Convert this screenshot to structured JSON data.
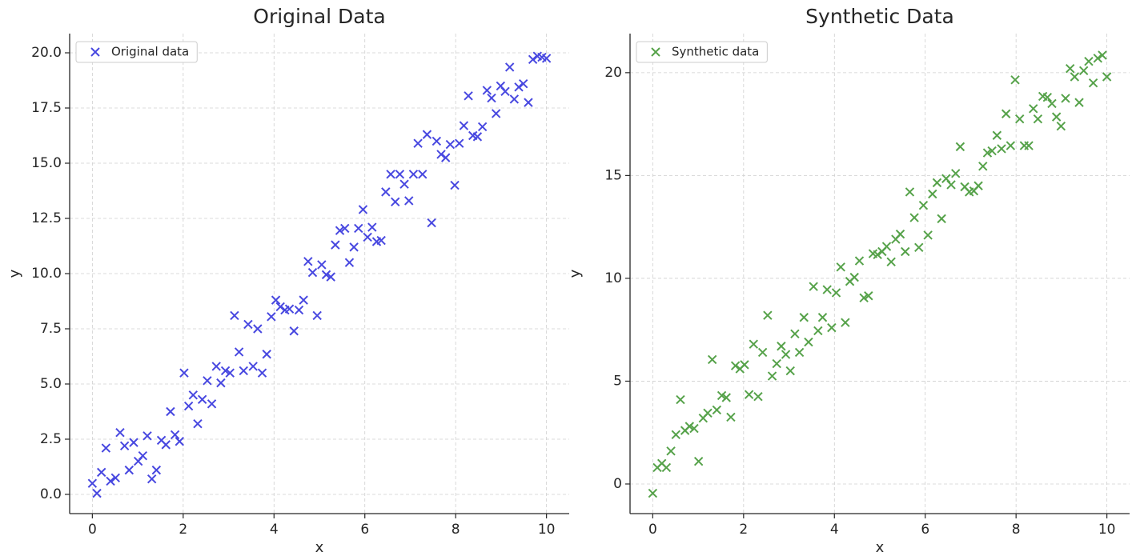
{
  "chart_data": [
    {
      "type": "scatter",
      "title": "Original Data",
      "xlabel": "x",
      "ylabel": "y",
      "grid": true,
      "legend": "upper left",
      "xlim": [
        -0.5,
        10.5
      ],
      "ylim": [
        -0.87,
        20.87
      ],
      "xticks": [
        0,
        2,
        4,
        6,
        8,
        10
      ],
      "yticks": [
        {
          "value": 0,
          "label": "0.0"
        },
        2.5,
        {
          "value": 5,
          "label": "5.0"
        },
        7.5,
        {
          "value": 10,
          "label": "10.0"
        },
        12.5,
        {
          "value": 15,
          "label": "15.0"
        },
        17.5,
        {
          "value": 20,
          "label": "20.0"
        }
      ],
      "x": [
        0,
        0.1,
        0.2,
        0.3,
        0.4,
        0.51,
        0.61,
        0.71,
        0.81,
        0.91,
        1.01,
        1.11,
        1.21,
        1.31,
        1.41,
        1.52,
        1.62,
        1.72,
        1.82,
        1.92,
        2.02,
        2.12,
        2.22,
        2.32,
        2.42,
        2.53,
        2.63,
        2.73,
        2.83,
        2.93,
        3.03,
        3.13,
        3.23,
        3.33,
        3.43,
        3.54,
        3.64,
        3.74,
        3.84,
        3.94,
        4.04,
        4.14,
        4.24,
        4.34,
        4.44,
        4.55,
        4.65,
        4.75,
        4.85,
        4.95,
        5.05,
        5.15,
        5.25,
        5.35,
        5.45,
        5.56,
        5.66,
        5.76,
        5.86,
        5.96,
        6.06,
        6.16,
        6.26,
        6.36,
        6.46,
        6.57,
        6.67,
        6.77,
        6.87,
        6.97,
        7.07,
        7.17,
        7.27,
        7.37,
        7.47,
        7.58,
        7.68,
        7.78,
        7.88,
        7.98,
        8.08,
        8.18,
        8.28,
        8.38,
        8.48,
        8.59,
        8.69,
        8.79,
        8.89,
        8.99,
        9.09,
        9.19,
        9.29,
        9.39,
        9.49,
        9.6,
        9.7,
        9.8,
        9.9,
        10
      ],
      "series": [
        {
          "name": "Original data",
          "color": "#4848e0",
          "values": [
            0.5,
            0.05,
            1.0,
            2.1,
            0.6,
            0.75,
            2.8,
            2.2,
            1.1,
            2.35,
            1.5,
            1.75,
            2.65,
            0.7,
            1.1,
            2.45,
            2.25,
            3.75,
            2.7,
            2.4,
            5.5,
            4.0,
            4.5,
            3.2,
            4.3,
            5.15,
            4.1,
            5.8,
            5.05,
            5.6,
            5.5,
            8.1,
            6.45,
            5.6,
            7.7,
            5.8,
            7.5,
            5.5,
            6.35,
            8.05,
            8.8,
            8.5,
            8.35,
            8.4,
            7.4,
            8.35,
            8.8,
            10.55,
            10.05,
            8.1,
            10.4,
            9.95,
            9.85,
            11.3,
            11.95,
            12.05,
            10.5,
            11.2,
            12.05,
            12.9,
            11.65,
            12.1,
            11.45,
            11.5,
            13.7,
            14.5,
            13.25,
            14.5,
            14.05,
            13.3,
            14.5,
            15.9,
            14.5,
            16.3,
            12.3,
            16.0,
            15.4,
            15.25,
            15.85,
            14.0,
            15.9,
            16.7,
            18.05,
            16.25,
            16.2,
            16.65,
            18.3,
            17.95,
            17.25,
            18.5,
            18.25,
            19.35,
            17.9,
            18.45,
            18.6,
            17.75,
            19.7,
            19.85,
            19.8,
            19.75
          ]
        }
      ]
    },
    {
      "type": "scatter",
      "title": "Synthetic Data",
      "xlabel": "x",
      "ylabel": "y",
      "grid": true,
      "legend": "upper left",
      "xlim": [
        -0.5,
        10.5
      ],
      "ylim": [
        -1.44,
        21.9
      ],
      "xticks": [
        0,
        2,
        4,
        6,
        8,
        10
      ],
      "yticks": [
        0,
        5,
        10,
        15,
        20
      ],
      "x": [
        0,
        0.1,
        0.2,
        0.3,
        0.4,
        0.51,
        0.61,
        0.71,
        0.81,
        0.91,
        1.01,
        1.11,
        1.21,
        1.31,
        1.41,
        1.52,
        1.62,
        1.72,
        1.82,
        1.92,
        2.02,
        2.12,
        2.22,
        2.32,
        2.42,
        2.53,
        2.63,
        2.73,
        2.83,
        2.93,
        3.03,
        3.13,
        3.23,
        3.33,
        3.43,
        3.54,
        3.64,
        3.74,
        3.84,
        3.94,
        4.04,
        4.14,
        4.24,
        4.34,
        4.44,
        4.55,
        4.65,
        4.75,
        4.85,
        4.95,
        5.05,
        5.15,
        5.25,
        5.35,
        5.45,
        5.56,
        5.66,
        5.76,
        5.86,
        5.96,
        6.06,
        6.16,
        6.26,
        6.36,
        6.46,
        6.57,
        6.67,
        6.77,
        6.87,
        6.97,
        7.07,
        7.17,
        7.27,
        7.37,
        7.47,
        7.58,
        7.68,
        7.78,
        7.88,
        7.98,
        8.08,
        8.18,
        8.28,
        8.38,
        8.48,
        8.59,
        8.69,
        8.79,
        8.89,
        8.99,
        9.09,
        9.19,
        9.29,
        9.39,
        9.49,
        9.6,
        9.7,
        9.8,
        9.9,
        10
      ],
      "series": [
        {
          "name": "Synthetic data",
          "color": "#56a24a",
          "values": [
            -0.45,
            0.8,
            1.0,
            0.8,
            1.6,
            2.4,
            4.1,
            2.6,
            2.8,
            2.7,
            1.1,
            3.2,
            3.45,
            6.05,
            3.6,
            4.3,
            4.2,
            3.25,
            5.75,
            5.6,
            5.8,
            4.35,
            6.8,
            4.25,
            6.4,
            8.2,
            5.25,
            5.85,
            6.7,
            6.3,
            5.5,
            7.3,
            6.4,
            8.1,
            6.9,
            9.6,
            7.45,
            8.1,
            9.45,
            7.6,
            9.3,
            10.55,
            7.85,
            9.85,
            10.05,
            10.85,
            9.05,
            9.15,
            11.2,
            11.15,
            11.3,
            11.55,
            10.8,
            11.9,
            12.15,
            11.3,
            14.2,
            12.95,
            11.5,
            13.55,
            12.1,
            14.1,
            14.65,
            12.9,
            14.85,
            14.55,
            15.1,
            16.4,
            14.45,
            14.2,
            14.25,
            14.5,
            15.45,
            16.1,
            16.2,
            16.95,
            16.3,
            18.0,
            16.45,
            19.65,
            17.75,
            16.45,
            16.45,
            18.25,
            17.75,
            18.85,
            18.8,
            18.5,
            17.85,
            17.4,
            18.75,
            20.2,
            19.8,
            18.55,
            20.1,
            20.55,
            19.5,
            20.7,
            20.85,
            19.8
          ]
        }
      ]
    }
  ]
}
